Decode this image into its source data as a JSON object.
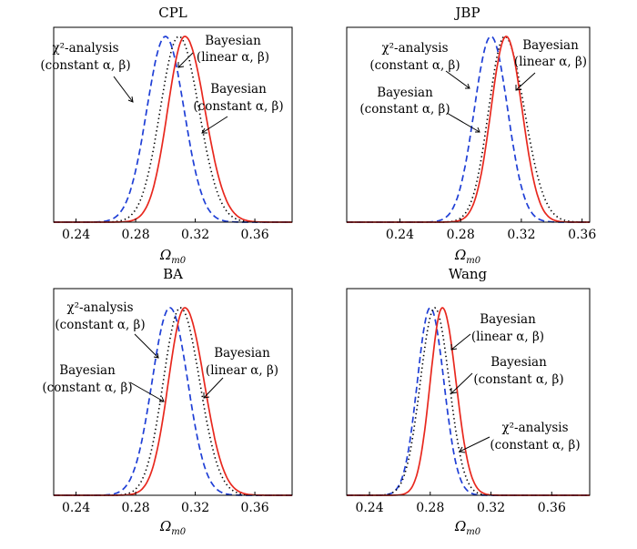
{
  "chart_data": [
    {
      "type": "line",
      "title": "CPL",
      "xlabel": "Ω",
      "xlabel_sub": "m0",
      "xlim": [
        0.225,
        0.385
      ],
      "xticks": [
        "0.24",
        "0.28",
        "0.32",
        "0.36"
      ],
      "xtick_values": [
        0.24,
        0.28,
        0.32,
        0.36
      ],
      "series": [
        {
          "style": "dashed",
          "color": "#1f3fd6",
          "mean": 0.3,
          "sigma_left": 0.0125,
          "sigma_right": 0.0125,
          "x": [
            0.25,
            0.26,
            0.27,
            0.28,
            0.285,
            0.29,
            0.295,
            0.3,
            0.305,
            0.31,
            0.315,
            0.32,
            0.33,
            0.34
          ],
          "y": [
            0.0,
            0.03,
            0.06,
            0.27,
            0.46,
            0.69,
            0.9,
            1.0,
            0.92,
            0.72,
            0.45,
            0.26,
            0.06,
            0.01
          ]
        },
        {
          "style": "dotted",
          "color": "#000000",
          "mean": 0.309,
          "sigma_left": 0.0125,
          "sigma_right": 0.0135,
          "x": [
            0.27,
            0.28,
            0.29,
            0.3,
            0.305,
            0.309,
            0.315,
            0.32,
            0.33,
            0.34,
            0.35
          ],
          "y": [
            0.01,
            0.06,
            0.3,
            0.72,
            0.93,
            1.0,
            0.92,
            0.72,
            0.32,
            0.08,
            0.01
          ]
        },
        {
          "style": "solid",
          "color": "#e8281e",
          "mean": 0.313,
          "sigma_left": 0.0115,
          "sigma_right": 0.0135,
          "x": [
            0.27,
            0.285,
            0.295,
            0.305,
            0.313,
            0.32,
            0.33,
            0.34,
            0.35,
            0.36,
            0.37
          ],
          "y": [
            0.0,
            0.07,
            0.3,
            0.76,
            1.0,
            0.88,
            0.46,
            0.15,
            0.03,
            0.01,
            0.0
          ]
        }
      ],
      "annotations": [
        {
          "lines": [
            "χ²-analysis",
            "(constant α, β)"
          ]
        },
        {
          "lines": [
            "Bayesian",
            "(linear α, β)"
          ]
        },
        {
          "lines": [
            "Bayesian",
            "(constant α, β)"
          ]
        }
      ]
    },
    {
      "type": "line",
      "title": "JBP",
      "xlabel": "Ω",
      "xlabel_sub": "m0",
      "xlim": [
        0.205,
        0.365
      ],
      "xticks": [
        "0.24",
        "0.28",
        "0.32",
        "0.36"
      ],
      "xtick_values": [
        0.24,
        0.28,
        0.32,
        0.36
      ],
      "series": [
        {
          "style": "dashed",
          "color": "#1f3fd6",
          "mean": 0.3,
          "sigma_left": 0.011,
          "sigma_right": 0.011,
          "x": [
            0.26,
            0.275,
            0.29,
            0.3,
            0.31,
            0.32,
            0.335
          ],
          "y": [
            0.01,
            0.08,
            0.66,
            1.0,
            0.68,
            0.14,
            0.0
          ]
        },
        {
          "style": "dotted",
          "color": "#000000",
          "mean": 0.309,
          "sigma_left": 0.0105,
          "sigma_right": 0.013,
          "x": [
            0.275,
            0.29,
            0.3,
            0.309,
            0.32,
            0.335,
            0.35
          ],
          "y": [
            0.01,
            0.22,
            0.7,
            1.0,
            0.7,
            0.13,
            0.01
          ]
        },
        {
          "style": "solid",
          "color": "#e8281e",
          "mean": 0.31,
          "sigma_left": 0.01,
          "sigma_right": 0.0105,
          "x": [
            0.28,
            0.295,
            0.305,
            0.31,
            0.32,
            0.335,
            0.345
          ],
          "y": [
            0.02,
            0.3,
            0.86,
            1.0,
            0.63,
            0.05,
            0.01
          ]
        }
      ],
      "annotations": [
        {
          "lines": [
            "χ²-analysis",
            "(constant α, β)"
          ]
        },
        {
          "lines": [
            "Bayesian",
            "(linear α, β)"
          ]
        },
        {
          "lines": [
            "Bayesian",
            "(constant α, β)"
          ]
        }
      ]
    },
    {
      "type": "line",
      "title": "BA",
      "xlabel": "Ω",
      "xlabel_sub": "m0",
      "xlim": [
        0.225,
        0.385
      ],
      "xticks": [
        "0.24",
        "0.28",
        "0.32",
        "0.36"
      ],
      "xtick_values": [
        0.24,
        0.28,
        0.32,
        0.36
      ],
      "series": [
        {
          "style": "dashed",
          "color": "#1f3fd6",
          "mean": 0.303,
          "sigma_left": 0.012,
          "sigma_right": 0.012,
          "x": [
            0.245,
            0.26,
            0.275,
            0.29,
            0.303,
            0.315,
            0.33,
            0.345
          ],
          "y": [
            0.01,
            0.03,
            0.08,
            0.58,
            1.0,
            0.6,
            0.08,
            0.0
          ]
        },
        {
          "style": "dotted",
          "color": "#000000",
          "mean": 0.31,
          "sigma_left": 0.0115,
          "sigma_right": 0.013,
          "x": [
            0.265,
            0.28,
            0.295,
            0.31,
            0.325,
            0.34,
            0.355
          ],
          "y": [
            0.02,
            0.06,
            0.42,
            1.0,
            0.5,
            0.06,
            0.0
          ]
        },
        {
          "style": "solid",
          "color": "#e8281e",
          "mean": 0.313,
          "sigma_left": 0.011,
          "sigma_right": 0.013,
          "x": [
            0.27,
            0.285,
            0.3,
            0.313,
            0.325,
            0.34,
            0.355,
            0.37
          ],
          "y": [
            0.01,
            0.07,
            0.46,
            1.0,
            0.62,
            0.13,
            0.02,
            0.0
          ]
        }
      ],
      "annotations": [
        {
          "lines": [
            "χ²-analysis",
            "(constant α, β)"
          ]
        },
        {
          "lines": [
            "Bayesian",
            "(constant α, β)"
          ]
        },
        {
          "lines": [
            "Bayesian",
            "(linear α, β)"
          ]
        }
      ]
    },
    {
      "type": "line",
      "title": "Wang",
      "xlabel": "Ω",
      "xlabel_sub": "m0",
      "xlim": [
        0.225,
        0.385
      ],
      "xticks": [
        "0.24",
        "0.28",
        "0.32",
        "0.36"
      ],
      "xtick_values": [
        0.24,
        0.28,
        0.32,
        0.36
      ],
      "series": [
        {
          "style": "dashed",
          "color": "#1f3fd6",
          "mean": 0.28,
          "sigma_left": 0.0085,
          "sigma_right": 0.009,
          "x": [
            0.245,
            0.26,
            0.27,
            0.28,
            0.29,
            0.3,
            0.315
          ],
          "y": [
            0.02,
            0.08,
            0.4,
            1.0,
            0.5,
            0.06,
            0.0
          ]
        },
        {
          "style": "dotted",
          "color": "#000000",
          "mean": 0.283,
          "sigma_left": 0.0095,
          "sigma_right": 0.0095,
          "x": [
            0.24,
            0.255,
            0.27,
            0.283,
            0.295,
            0.31,
            0.325
          ],
          "y": [
            0.02,
            0.07,
            0.36,
            1.0,
            0.45,
            0.04,
            0.0
          ]
        },
        {
          "style": "solid",
          "color": "#e8281e",
          "mean": 0.288,
          "sigma_left": 0.008,
          "sigma_right": 0.009,
          "x": [
            0.255,
            0.27,
            0.28,
            0.288,
            0.3,
            0.315,
            0.33
          ],
          "y": [
            0.0,
            0.06,
            0.55,
            1.0,
            0.42,
            0.04,
            0.0
          ]
        }
      ],
      "annotations": [
        {
          "lines": [
            "Bayesian",
            "(linear α, β)"
          ]
        },
        {
          "lines": [
            "Bayesian",
            "(constant α, β)"
          ]
        },
        {
          "lines": [
            "χ²-analysis",
            "(constant α, β)"
          ]
        }
      ]
    }
  ]
}
